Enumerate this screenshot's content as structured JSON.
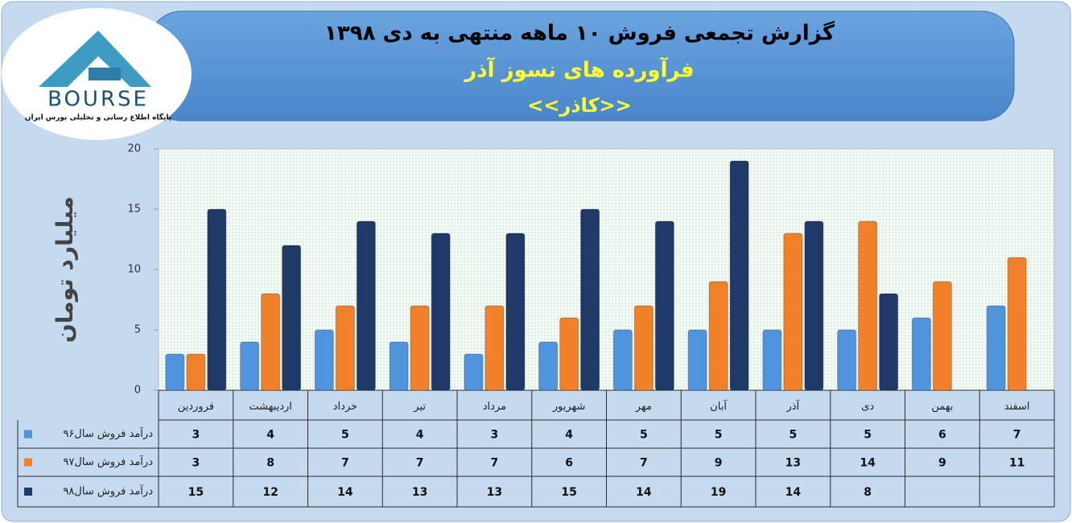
{
  "logo": {
    "name": "BOURSE",
    "tagline": "پایگاه اطلاع رسانی و تحلیلی بورس ایران"
  },
  "chart_data": {
    "type": "bar",
    "title": "گزارش تجمعی فروش  ۱۰ ماهه منتهی به دی ۱۳۹۸",
    "subtitle": "فرآورده های نسوز آذر",
    "company": "<<کاذر>>",
    "y_label": "میلیارد تومان",
    "categories": [
      "فروردین",
      "اردیبهشت",
      "خرداد",
      "تیر",
      "مرداد",
      "شهریور",
      "مهر",
      "آبان",
      "آذر",
      "دی",
      "بهمن",
      "اسفند"
    ],
    "series": [
      {
        "name": "درآمد فروش سال۹۶",
        "color": "#4f94dc",
        "values": [
          3,
          4,
          5,
          4,
          3,
          4,
          5,
          5,
          5,
          5,
          6,
          7
        ]
      },
      {
        "name": "درآمد فروش سال۹۷",
        "color": "#f0802a",
        "values": [
          3,
          8,
          7,
          7,
          7,
          6,
          7,
          9,
          13,
          14,
          9,
          11
        ]
      },
      {
        "name": "درآمد فروش سال۹۸",
        "color": "#1f3a68",
        "values": [
          15,
          12,
          14,
          13,
          13,
          15,
          14,
          19,
          14,
          8,
          null,
          null
        ]
      }
    ],
    "ylim": [
      0,
      20
    ],
    "yticks": [
      0,
      5,
      10,
      15,
      20
    ],
    "grid": false
  }
}
